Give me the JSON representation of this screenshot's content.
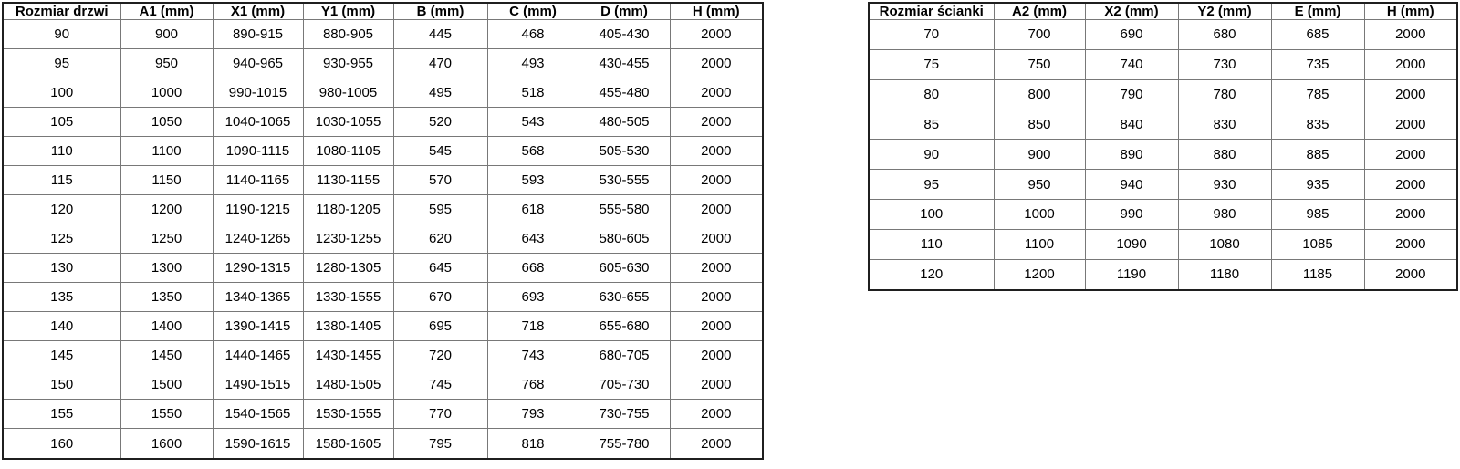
{
  "colors": {
    "background": "#ffffff",
    "text": "#000000",
    "border_inner": "#787878",
    "border_outer": "#1f1f1f"
  },
  "tables": [
    {
      "title": "Rozmiar drzwi",
      "headers": [
        "Rozmiar drzwi",
        "A1 (mm)",
        "X1 (mm)",
        "Y1 (mm)",
        "B (mm)",
        "C (mm)",
        "D (mm)",
        "H (mm)"
      ],
      "rows": [
        [
          "90",
          "900",
          "890-915",
          "880-905",
          "445",
          "468",
          "405-430",
          "2000"
        ],
        [
          "95",
          "950",
          "940-965",
          "930-955",
          "470",
          "493",
          "430-455",
          "2000"
        ],
        [
          "100",
          "1000",
          "990-1015",
          "980-1005",
          "495",
          "518",
          "455-480",
          "2000"
        ],
        [
          "105",
          "1050",
          "1040-1065",
          "1030-1055",
          "520",
          "543",
          "480-505",
          "2000"
        ],
        [
          "110",
          "1100",
          "1090-1115",
          "1080-1105",
          "545",
          "568",
          "505-530",
          "2000"
        ],
        [
          "115",
          "1150",
          "1140-1165",
          "1130-1155",
          "570",
          "593",
          "530-555",
          "2000"
        ],
        [
          "120",
          "1200",
          "1190-1215",
          "1180-1205",
          "595",
          "618",
          "555-580",
          "2000"
        ],
        [
          "125",
          "1250",
          "1240-1265",
          "1230-1255",
          "620",
          "643",
          "580-605",
          "2000"
        ],
        [
          "130",
          "1300",
          "1290-1315",
          "1280-1305",
          "645",
          "668",
          "605-630",
          "2000"
        ],
        [
          "135",
          "1350",
          "1340-1365",
          "1330-1555",
          "670",
          "693",
          "630-655",
          "2000"
        ],
        [
          "140",
          "1400",
          "1390-1415",
          "1380-1405",
          "695",
          "718",
          "655-680",
          "2000"
        ],
        [
          "145",
          "1450",
          "1440-1465",
          "1430-1455",
          "720",
          "743",
          "680-705",
          "2000"
        ],
        [
          "150",
          "1500",
          "1490-1515",
          "1480-1505",
          "745",
          "768",
          "705-730",
          "2000"
        ],
        [
          "155",
          "1550",
          "1540-1565",
          "1530-1555",
          "770",
          "793",
          "730-755",
          "2000"
        ],
        [
          "160",
          "1600",
          "1590-1615",
          "1580-1605",
          "795",
          "818",
          "755-780",
          "2000"
        ]
      ]
    },
    {
      "title": "Rozmiar ścianki",
      "headers": [
        "Rozmiar ścianki",
        "A2 (mm)",
        "X2 (mm)",
        "Y2 (mm)",
        "E (mm)",
        "H (mm)"
      ],
      "rows": [
        [
          "70",
          "700",
          "690",
          "680",
          "685",
          "2000"
        ],
        [
          "75",
          "750",
          "740",
          "730",
          "735",
          "2000"
        ],
        [
          "80",
          "800",
          "790",
          "780",
          "785",
          "2000"
        ],
        [
          "85",
          "850",
          "840",
          "830",
          "835",
          "2000"
        ],
        [
          "90",
          "900",
          "890",
          "880",
          "885",
          "2000"
        ],
        [
          "95",
          "950",
          "940",
          "930",
          "935",
          "2000"
        ],
        [
          "100",
          "1000",
          "990",
          "980",
          "985",
          "2000"
        ],
        [
          "110",
          "1100",
          "1090",
          "1080",
          "1085",
          "2000"
        ],
        [
          "120",
          "1200",
          "1190",
          "1180",
          "1185",
          "2000"
        ]
      ]
    }
  ]
}
